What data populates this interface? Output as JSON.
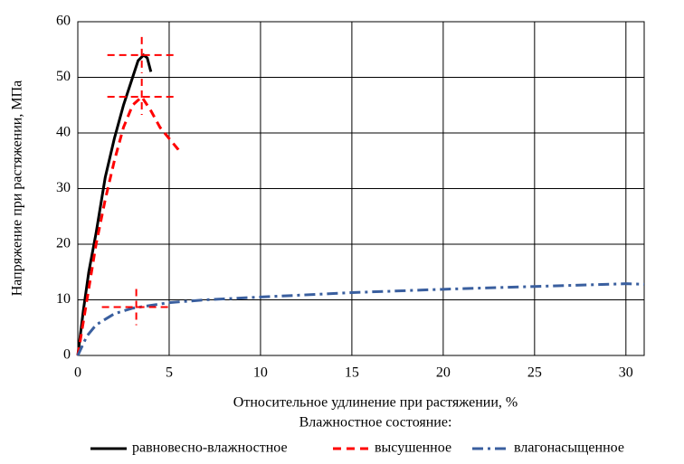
{
  "chart_data": {
    "type": "line",
    "x_label": "Относительное удлинение при растяжении, %",
    "y_label": "Напряжение при растяжении, МПа",
    "legend_title": "Влажностное состояние:",
    "xlim": [
      0,
      31
    ],
    "xticks": [
      0,
      5,
      10,
      15,
      20,
      25,
      30
    ],
    "ylim": [
      0,
      60
    ],
    "yticks": [
      0,
      10,
      20,
      30,
      40,
      50,
      60
    ],
    "grid": true,
    "legend": "bottom",
    "series": [
      {
        "name": "равновесно-влажностное",
        "color": "#000000",
        "dash": "solid",
        "x": [
          0,
          0.3,
          0.6,
          1,
          1.5,
          2,
          2.5,
          3,
          3.3,
          3.6,
          3.8,
          4
        ],
        "values": [
          0,
          8,
          15,
          22,
          32,
          39,
          45,
          50,
          53,
          54,
          53.5,
          51
        ]
      },
      {
        "name": "высушенное",
        "color": "#ff0000",
        "dash": "dashed",
        "x": [
          0,
          0.5,
          1,
          1.5,
          2,
          2.5,
          3,
          3.5,
          4,
          4.5,
          5,
          5.5,
          5.6
        ],
        "values": [
          0,
          10,
          20,
          28,
          35,
          41,
          45,
          46.5,
          44,
          41,
          39,
          37,
          36.5
        ]
      },
      {
        "name": "влагонасыщенное",
        "color": "#3a5f9f",
        "dash": "dashdot",
        "x": [
          0,
          0.5,
          1,
          2,
          3,
          4,
          5,
          7,
          10,
          15,
          20,
          25,
          30,
          31
        ],
        "values": [
          0,
          3.5,
          5.5,
          7.5,
          8.5,
          9,
          9.5,
          10,
          10.5,
          11.3,
          11.9,
          12.4,
          12.9,
          12.8
        ]
      }
    ],
    "crosshairs": {
      "color": "#ff0000",
      "x": [
        3.5,
        3.5,
        3.2
      ],
      "values": [
        54,
        46.5,
        8.7
      ]
    }
  }
}
